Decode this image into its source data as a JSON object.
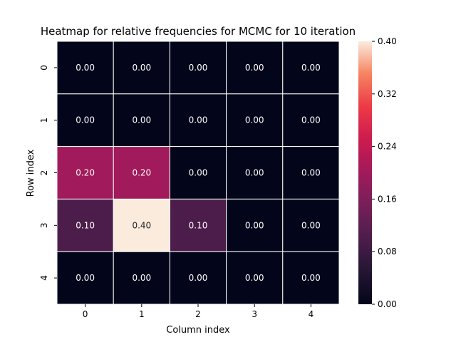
{
  "chart_data": {
    "type": "heatmap",
    "title": "Heatmap for relative frequencies for MCMC for 10 iteration",
    "xlabel": "Column index",
    "ylabel": "Row index",
    "x_categories": [
      "0",
      "1",
      "2",
      "3",
      "4"
    ],
    "y_categories": [
      "0",
      "1",
      "2",
      "3",
      "4"
    ],
    "values": [
      [
        0.0,
        0.0,
        0.0,
        0.0,
        0.0
      ],
      [
        0.0,
        0.0,
        0.0,
        0.0,
        0.0
      ],
      [
        0.2,
        0.2,
        0.0,
        0.0,
        0.0
      ],
      [
        0.1,
        0.4,
        0.1,
        0.0,
        0.0
      ],
      [
        0.0,
        0.0,
        0.0,
        0.0,
        0.0
      ]
    ],
    "colorbar": {
      "range": [
        0,
        0.4
      ],
      "ticks": [
        "0.00",
        "0.08",
        "0.16",
        "0.24",
        "0.32",
        "0.40"
      ]
    },
    "colormap": "rocket",
    "grid_lines": true
  }
}
